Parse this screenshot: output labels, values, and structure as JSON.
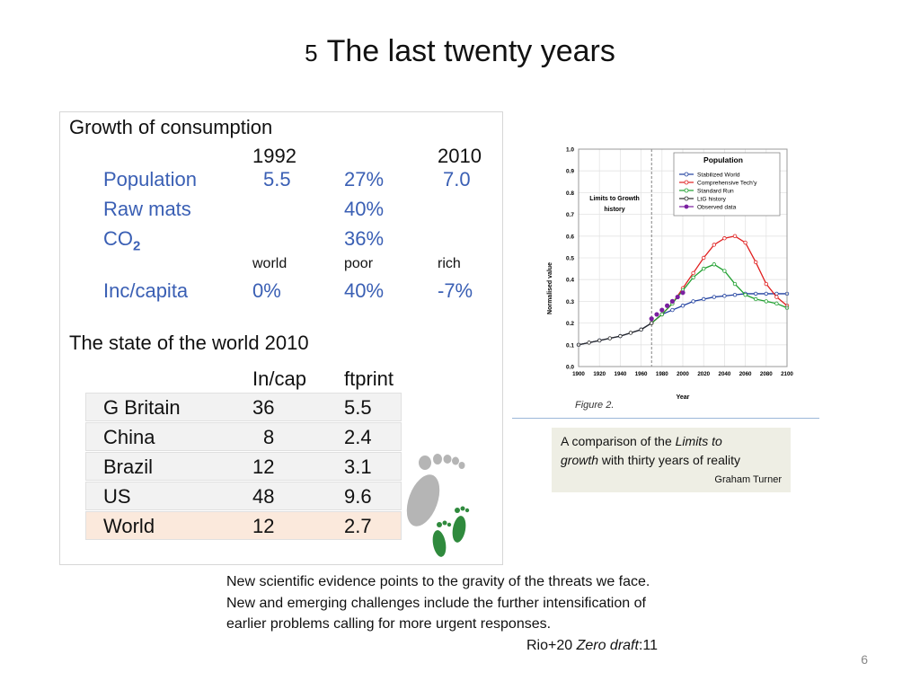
{
  "slide": {
    "number": "5",
    "title": "The last twenty years",
    "page_number": "6"
  },
  "consumption": {
    "heading": "Growth of consumption",
    "col_1992": "1992",
    "col_2010": "2010",
    "rows": [
      {
        "label": "Population",
        "v1992": "5.5",
        "pct": "27%",
        "v2010": "7.0"
      },
      {
        "label": "Raw mats",
        "pct": "40%"
      },
      {
        "label": "CO",
        "sub": "2",
        "pct": "36%"
      }
    ],
    "inc_headers": {
      "world": "world",
      "poor": "poor",
      "rich": "rich"
    },
    "inc_row": {
      "label": "Inc/capita",
      "world": "0%",
      "poor": "40%",
      "rich": "-7%"
    }
  },
  "state": {
    "heading": "The state of the world 2010",
    "col_incap": "In/cap",
    "col_ftprint": "ftprint",
    "rows": [
      {
        "country": "G Britain",
        "incap": "36",
        "ftprint": "5.5"
      },
      {
        "country": "China",
        "incap": "8",
        "ftprint": "2.4"
      },
      {
        "country": "Brazil",
        "incap": "12",
        "ftprint": "3.1"
      },
      {
        "country": "US",
        "incap": "48",
        "ftprint": "9.6"
      },
      {
        "country": "World",
        "incap": "12",
        "ftprint": "2.7"
      }
    ]
  },
  "icons": {
    "footprints": "footprints-icon"
  },
  "chart_data": {
    "type": "line",
    "title": "Population",
    "ylabel": "Normalised value",
    "xlabel": "Year",
    "figure_label": "Figure 2.",
    "annotation": "Limits to Growth history",
    "ylim": [
      0.0,
      1.0
    ],
    "xlim": [
      1900,
      2100
    ],
    "x_ticks": [
      "1900",
      "1920",
      "1940",
      "1960",
      "1980",
      "2000",
      "2020",
      "2040",
      "2060",
      "2080",
      "2100"
    ],
    "y_ticks": [
      "0.0",
      "0.1",
      "0.2",
      "0.3",
      "0.4",
      "0.5",
      "0.6",
      "0.7",
      "0.8",
      "0.9",
      "1.0"
    ],
    "grid": true,
    "legend_position": "top-right",
    "series": [
      {
        "name": "Stabilized World",
        "color": "#1f3f9f",
        "x": [
          1900,
          1920,
          1940,
          1960,
          1970,
          1980,
          1990,
          2000,
          2010,
          2020,
          2030,
          2040,
          2050,
          2060,
          2070,
          2080,
          2090,
          2100
        ],
        "y": [
          0.1,
          0.12,
          0.14,
          0.17,
          0.2,
          0.24,
          0.26,
          0.28,
          0.3,
          0.31,
          0.32,
          0.325,
          0.33,
          0.335,
          0.335,
          0.335,
          0.335,
          0.335
        ]
      },
      {
        "name": "Comprehensive Tech'y",
        "color": "#e02020",
        "x": [
          1970,
          1980,
          1990,
          2000,
          2010,
          2020,
          2030,
          2040,
          2050,
          2060,
          2070,
          2080,
          2090,
          2100
        ],
        "y": [
          0.2,
          0.24,
          0.29,
          0.36,
          0.43,
          0.5,
          0.56,
          0.59,
          0.6,
          0.57,
          0.48,
          0.38,
          0.32,
          0.28
        ]
      },
      {
        "name": "Standard Run",
        "color": "#20a030",
        "x": [
          1970,
          1980,
          1990,
          2000,
          2010,
          2020,
          2030,
          2040,
          2050,
          2060,
          2070,
          2080,
          2090,
          2100
        ],
        "y": [
          0.2,
          0.24,
          0.29,
          0.35,
          0.41,
          0.45,
          0.47,
          0.44,
          0.38,
          0.33,
          0.31,
          0.3,
          0.29,
          0.27
        ]
      },
      {
        "name": "LtG history",
        "color": "#2a2a2a",
        "x": [
          1900,
          1910,
          1920,
          1930,
          1940,
          1950,
          1960,
          1970
        ],
        "y": [
          0.1,
          0.11,
          0.12,
          0.13,
          0.14,
          0.155,
          0.17,
          0.2
        ]
      },
      {
        "name": "Observed data",
        "color": "#7a1fa0",
        "x": [
          1970,
          1975,
          1980,
          1985,
          1990,
          1995,
          2000
        ],
        "y": [
          0.22,
          0.24,
          0.26,
          0.28,
          0.3,
          0.32,
          0.34
        ]
      }
    ]
  },
  "caption": {
    "prefix": "A comparison of  the ",
    "italic1": "Limits to",
    "italic2": "growth",
    "suffix": " with thirty years of reality",
    "author": "Graham Turner"
  },
  "quote": {
    "text": "New scientific evidence points to the gravity of the threats we face. New and emerging challenges include the further intensification of earlier problems calling for more urgent responses.",
    "source_prefix": "Rio+20 ",
    "source_italic": "Zero draft",
    "source_suffix": ":11"
  }
}
